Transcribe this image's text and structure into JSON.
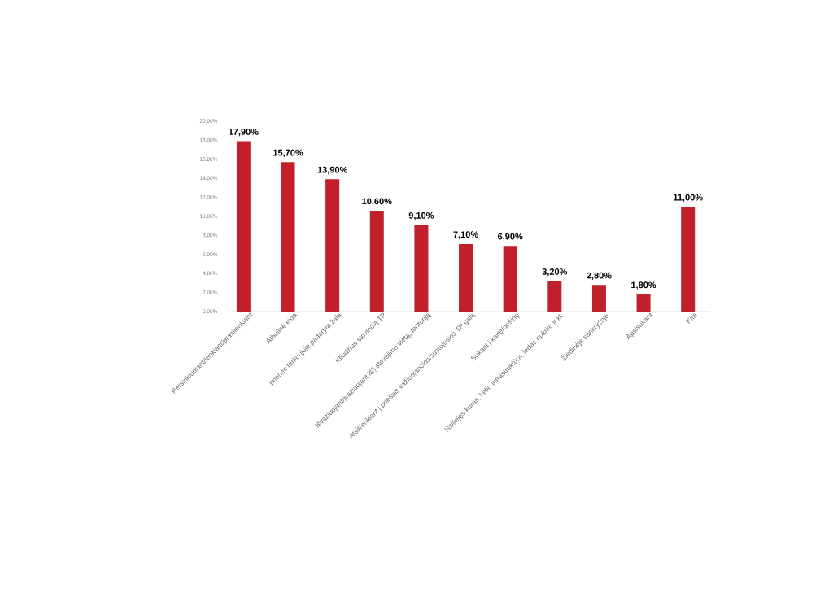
{
  "chart_data": {
    "type": "bar",
    "categories": [
      "Persirikiuojant/lenkiant/prasilenkiant",
      "Atbulinė eiga",
      "Įmonės teritorijoje padaryta žala",
      "Kliudžius stovinčią TP",
      "Išvažiuojant/įvažiuojant iš/į stovėjimo vietą, teritoriją",
      "Atsitrenkiant į priešais važiuojančios/sustojusios TP galą",
      "Sukant į kairę/dešinę",
      "Išsiliejęs kuras, kelio infrastruktūra, ledas nukrito ir kt.",
      "Žiedinėje sankryžoje",
      "Apsisukant",
      "Kita"
    ],
    "values": [
      17.9,
      15.7,
      13.9,
      10.6,
      9.1,
      7.1,
      6.9,
      3.2,
      2.8,
      1.8,
      11.0
    ],
    "value_labels": [
      "17,90%",
      "15,70%",
      "13,90%",
      "10,60%",
      "9,10%",
      "7,10%",
      "6,90%",
      "3,20%",
      "2,80%",
      "1,80%",
      "11,00%"
    ],
    "color": "#c1202b",
    "ylim": [
      0,
      20
    ],
    "yticks": [
      {
        "value": 0,
        "label": "0,00%"
      },
      {
        "value": 2,
        "label": "2,00%"
      },
      {
        "value": 4,
        "label": "4,00%"
      },
      {
        "value": 6,
        "label": "6,00%"
      },
      {
        "value": 8,
        "label": "8,00%"
      },
      {
        "value": 10,
        "label": "10,00%"
      },
      {
        "value": 12,
        "label": "12,00%"
      },
      {
        "value": 14,
        "label": "14,00%"
      },
      {
        "value": 16,
        "label": "16,00%"
      },
      {
        "value": 18,
        "label": "18,00%"
      },
      {
        "value": 20,
        "label": "20,00%"
      }
    ]
  }
}
